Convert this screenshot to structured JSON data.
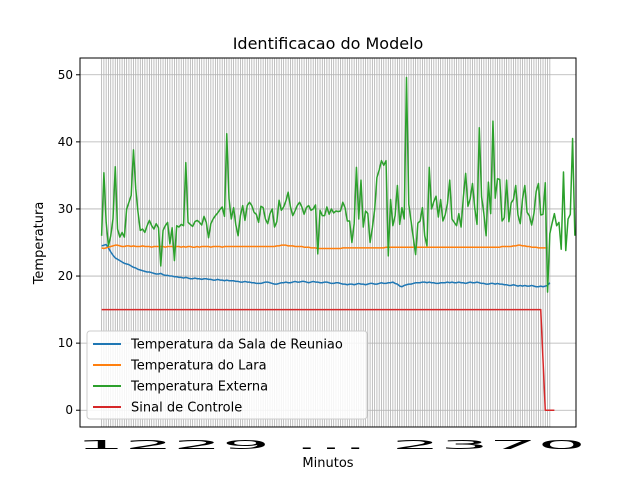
{
  "chart_data": {
    "type": "line",
    "title": "Identificacao do Modelo",
    "xlabel": "Minutos",
    "ylabel": "Temperatura",
    "ylim": [
      -2.5,
      52.5
    ],
    "yticks": [
      0,
      10,
      20,
      30,
      40,
      50
    ],
    "xtick_labels_text": "1229 ... 2370",
    "grid": true,
    "legend_position": "lower-left",
    "series": [
      {
        "name": "Temperatura da Sala de Reuniao",
        "color": "#1f77b4",
        "values": [
          24.5,
          24.6,
          24.7,
          24.2,
          23.6,
          23.1,
          22.7,
          22.5,
          22.3,
          22.1,
          21.9,
          21.8,
          21.7,
          21.5,
          21.3,
          21.2,
          21.0,
          20.9,
          20.8,
          20.7,
          20.6,
          20.6,
          20.5,
          20.4,
          20.3,
          20.3,
          20.4,
          20.2,
          20.1,
          20.1,
          20.0,
          20.0,
          19.9,
          19.9,
          19.8,
          19.8,
          19.7,
          19.8,
          19.7,
          19.6,
          19.6,
          19.7,
          19.6,
          19.6,
          19.5,
          19.6,
          19.6,
          19.5,
          19.5,
          19.4,
          19.4,
          19.5,
          19.4,
          19.4,
          19.3,
          19.4,
          19.3,
          19.3,
          19.3,
          19.2,
          19.2,
          19.1,
          19.1,
          19.2,
          19.1,
          19.1,
          19.0,
          19.0,
          18.9,
          18.9,
          18.9,
          19.0,
          19.1,
          19.1,
          19.0,
          18.9,
          18.8,
          18.8,
          18.9,
          19.0,
          19.0,
          19.1,
          19.0,
          19.0,
          19.1,
          19.2,
          19.1,
          19.1,
          19.2,
          19.2,
          19.1,
          19.0,
          19.1,
          19.2,
          19.1,
          19.1,
          19.0,
          19.0,
          19.1,
          19.1,
          19.0,
          18.9,
          18.9,
          19.0,
          19.0,
          18.9,
          18.8,
          18.8,
          18.7,
          18.8,
          18.8,
          18.7,
          18.8,
          18.9,
          18.8,
          18.8,
          18.7,
          18.8,
          18.9,
          18.9,
          18.8,
          18.8,
          18.9,
          19.0,
          18.9,
          18.9,
          19.0,
          19.0,
          19.1,
          18.9,
          18.8,
          18.5,
          18.4,
          18.6,
          18.7,
          18.8,
          18.8,
          18.9,
          19.0,
          19.0,
          19.0,
          19.1,
          19.1,
          19.0,
          19.1,
          19.0,
          19.0,
          18.9,
          18.9,
          19.0,
          19.0,
          19.0,
          19.1,
          19.0,
          19.1,
          19.0,
          19.0,
          19.1,
          19.0,
          19.0,
          18.9,
          19.0,
          19.1,
          19.0,
          19.0,
          19.1,
          19.0,
          18.9,
          18.9,
          18.8,
          18.8,
          18.9,
          18.9,
          18.8,
          18.9,
          18.8,
          18.8,
          18.7,
          18.7,
          18.6,
          18.6,
          18.7,
          18.6,
          18.5,
          18.6,
          18.5,
          18.6,
          18.5,
          18.5,
          18.6,
          18.5,
          18.4,
          18.4,
          18.5,
          18.4,
          18.5,
          18.6,
          19.0
        ]
      },
      {
        "name": "Temperatura do Lara",
        "color": "#ff7f0e",
        "values": [
          24.2,
          24.1,
          24.2,
          24.3,
          24.4,
          24.5,
          24.6,
          24.6,
          24.5,
          24.4,
          24.4,
          24.5,
          24.5,
          24.4,
          24.5,
          24.4,
          24.4,
          24.4,
          24.5,
          24.4,
          24.4,
          24.4,
          24.3,
          24.4,
          24.4,
          24.4,
          24.4,
          24.4,
          24.3,
          24.4,
          24.4,
          24.4,
          24.3,
          24.4,
          24.4,
          24.3,
          24.4,
          24.3,
          24.4,
          24.4,
          24.3,
          24.3,
          24.4,
          24.3,
          24.4,
          24.4,
          24.4,
          24.4,
          24.3,
          24.4,
          24.4,
          24.4,
          24.4,
          24.3,
          24.4,
          24.4,
          24.4,
          24.4,
          24.4,
          24.4,
          24.4,
          24.4,
          24.4,
          24.4,
          24.4,
          24.4,
          24.4,
          24.4,
          24.4,
          24.4,
          24.4,
          24.4,
          24.4,
          24.4,
          24.4,
          24.4,
          24.4,
          24.5,
          24.5,
          24.6,
          24.6,
          24.6,
          24.5,
          24.5,
          24.5,
          24.4,
          24.4,
          24.4,
          24.4,
          24.3,
          24.3,
          24.3,
          24.2,
          24.2,
          24.2,
          24.1,
          24.1,
          24.1,
          24.1,
          24.1,
          24.1,
          24.1,
          24.1,
          24.1,
          24.1,
          24.1,
          24.2,
          24.2,
          24.2,
          24.2,
          24.2,
          24.2,
          24.2,
          24.2,
          24.2,
          24.2,
          24.2,
          24.2,
          24.2,
          24.2,
          24.2,
          24.2,
          24.2,
          24.2,
          24.2,
          24.3,
          24.3,
          24.3,
          24.3,
          24.3,
          24.3,
          24.3,
          24.3,
          24.3,
          24.3,
          24.3,
          24.3,
          24.3,
          24.3,
          24.3,
          24.3,
          24.3,
          24.3,
          24.3,
          24.3,
          24.3,
          24.3,
          24.3,
          24.3,
          24.3,
          24.3,
          24.3,
          24.3,
          24.3,
          24.3,
          24.3,
          24.3,
          24.3,
          24.3,
          24.3,
          24.3,
          24.3,
          24.3,
          24.3,
          24.3,
          24.3,
          24.3,
          24.3,
          24.3,
          24.3,
          24.3,
          24.3,
          24.3,
          24.3,
          24.3,
          24.3,
          24.4,
          24.4,
          24.4,
          24.4,
          24.4,
          24.5,
          24.5,
          24.6,
          24.6,
          24.5,
          24.5,
          24.4,
          24.4,
          24.3,
          24.3,
          24.3,
          24.2,
          24.2,
          24.2,
          24.2,
          24.2
        ]
      },
      {
        "name": "Temperatura Externa",
        "color": "#2ca02c",
        "values": [
          26.0,
          35.4,
          28.0,
          24.5,
          26.0,
          28.5,
          36.3,
          27.0,
          25.8,
          26.5,
          25.8,
          30.0,
          31.0,
          32.0,
          38.8,
          33.0,
          29.5,
          26.8,
          27.0,
          26.5,
          27.5,
          28.3,
          27.5,
          27.0,
          27.8,
          27.2,
          21.5,
          26.8,
          27.5,
          28.0,
          24.8,
          27.2,
          22.3,
          27.5,
          27.3,
          27.7,
          27.5,
          36.9,
          28.0,
          27.7,
          27.4,
          28.1,
          28.3,
          28.0,
          27.6,
          28.9,
          28.0,
          25.7,
          27.8,
          28.5,
          29.0,
          29.4,
          29.9,
          30.3,
          28.9,
          41.2,
          31.5,
          28.5,
          30.2,
          27.6,
          26.0,
          29.0,
          30.5,
          28.3,
          30.5,
          31.0,
          30.5,
          29.5,
          29.2,
          28.0,
          30.4,
          30.2,
          28.5,
          27.8,
          29.3,
          30.0,
          27.3,
          28.1,
          31.3,
          29.8,
          30.3,
          31.2,
          32.5,
          30.3,
          29.0,
          29.7,
          30.5,
          31.0,
          30.3,
          29.2,
          30.2,
          30.5,
          29.8,
          30.0,
          30.6,
          23.3,
          29.8,
          29.0,
          29.0,
          30.3,
          29.2,
          30.0,
          29.4,
          29.7,
          29.6,
          29.7,
          31.0,
          30.2,
          28.2,
          28.2,
          25.0,
          27.8,
          36.2,
          28.5,
          34.3,
          27.3,
          29.7,
          29.3,
          25.0,
          27.2,
          29.9,
          34.7,
          35.8,
          37.2,
          36.5,
          37.2,
          23.0,
          31.4,
          27.5,
          29.0,
          33.5,
          27.7,
          30.2,
          28.5,
          49.6,
          30.7,
          28.2,
          25.7,
          23.2,
          27.9,
          28.2,
          30.2,
          26.0,
          24.5,
          36.2,
          30.0,
          31.1,
          31.9,
          28.8,
          31.4,
          28.2,
          29.1,
          30.8,
          34.3,
          28.5,
          28.0,
          27.5,
          29.3,
          27.3,
          31.8,
          35.3,
          30.4,
          31.5,
          33.8,
          30.1,
          27.7,
          42.1,
          31.8,
          29.3,
          26.0,
          34.0,
          29.3,
          43.1,
          31.6,
          34.5,
          34.4,
          28.2,
          28.7,
          34.3,
          28.1,
          30.9,
          31.4,
          33.5,
          29.1,
          27.8,
          31.5,
          33.5,
          29.5,
          29.0,
          27.6,
          29.3,
          32.6,
          33.8,
          29.1,
          29.2,
          33.9,
          17.6,
          26.3,
          27.9,
          29.3,
          27.5,
          28.0,
          24.0,
          35.5,
          23.8,
          28.5,
          29.2,
          40.5,
          26.0
        ]
      },
      {
        "name": "Sinal de Controle",
        "color": "#d62728",
        "x": [
          0,
          193,
          195,
          199
        ],
        "values": [
          15,
          15,
          0,
          0
        ]
      }
    ]
  }
}
